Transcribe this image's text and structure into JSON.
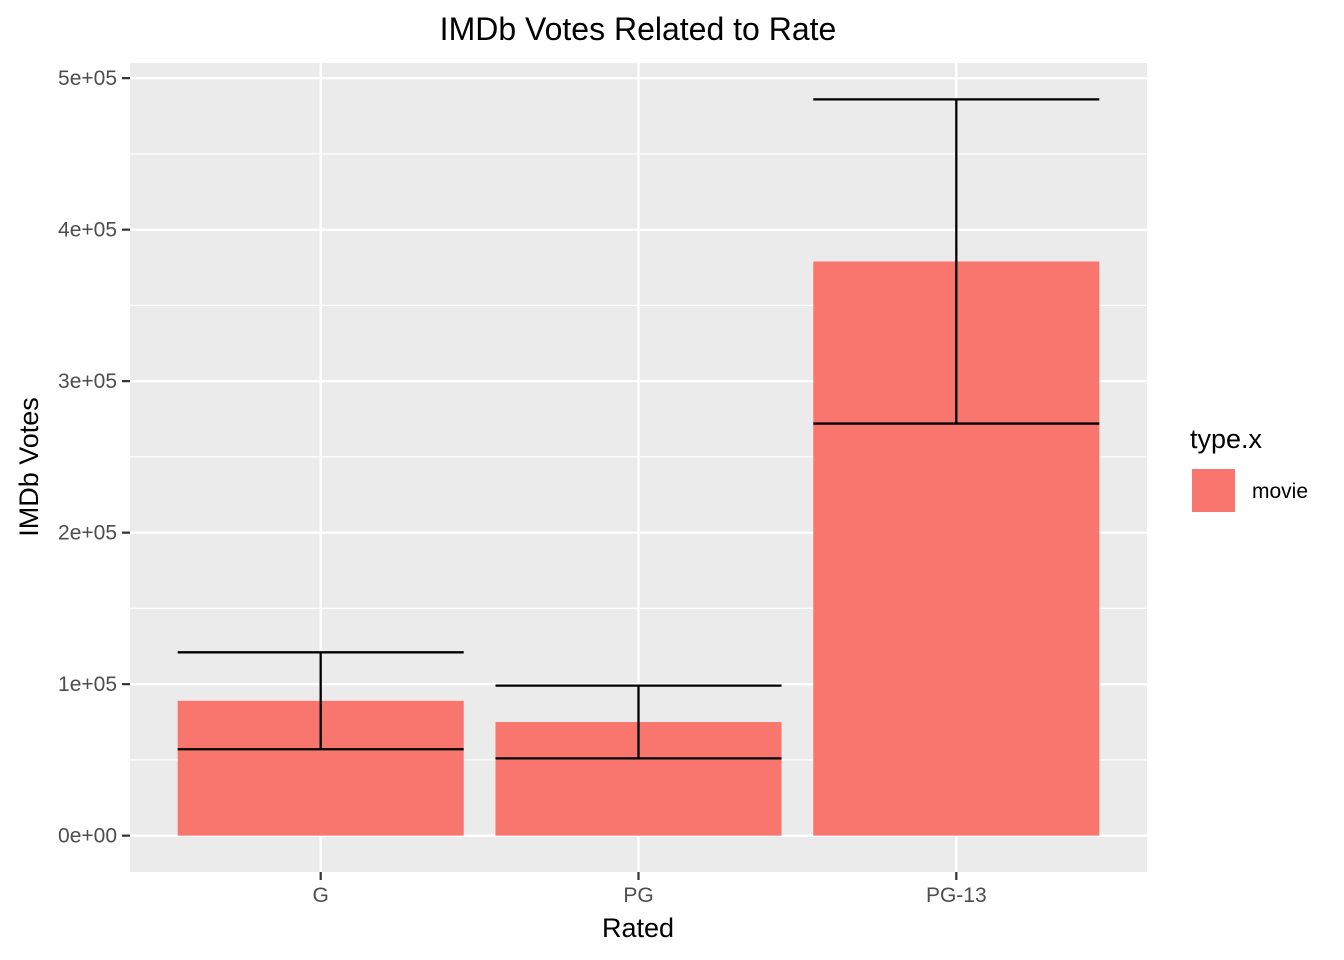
{
  "chart_data": {
    "type": "bar",
    "title": "IMDb Votes Related to Rate",
    "xlabel": "Rated",
    "ylabel": "IMDb Votes",
    "categories": [
      "G",
      "PG",
      "PG-13"
    ],
    "series": [
      {
        "name": "movie",
        "color": "#F8766D",
        "values": [
          89000,
          75000,
          379000
        ],
        "error_low": [
          57000,
          51000,
          272000
        ],
        "error_high": [
          121000,
          99000,
          486000
        ]
      }
    ],
    "ylim": [
      -24000,
      510000
    ],
    "yticks": [
      0,
      100000,
      200000,
      300000,
      400000,
      500000
    ],
    "ytick_labels": [
      "0e+00",
      "1e+05",
      "2e+05",
      "3e+05",
      "4e+05",
      "5e+05"
    ],
    "legend": {
      "title": "type.x",
      "position": "right"
    },
    "grid": true
  }
}
